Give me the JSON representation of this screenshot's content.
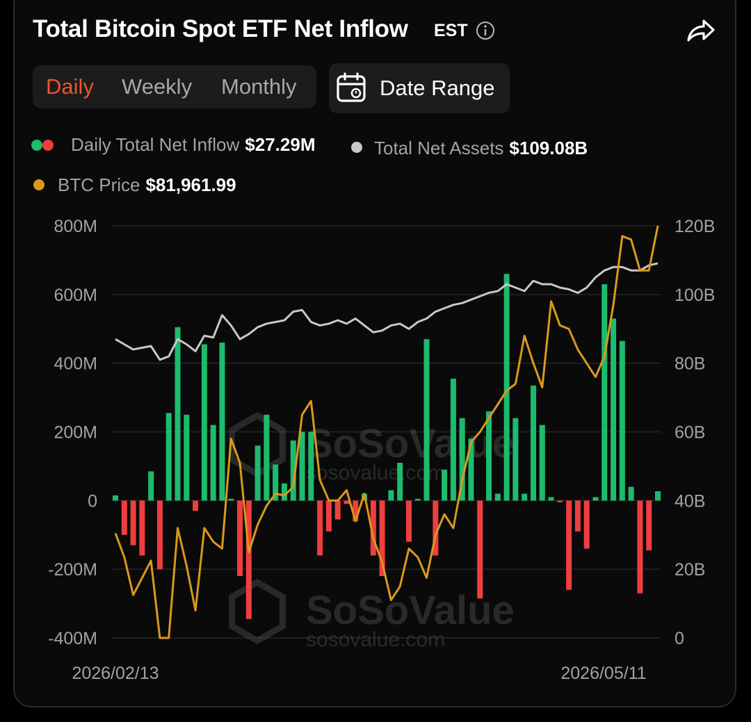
{
  "header": {
    "title": "Total Bitcoin Spot ETF Net Inflow",
    "timezone": "EST"
  },
  "tabs": [
    "Daily",
    "Weekly",
    "Monthly"
  ],
  "active_tab": "Daily",
  "date_range_label": "Date Range",
  "legend": {
    "inflow": {
      "label": "Daily Total Net Inflow",
      "value": "$27.29M"
    },
    "assets": {
      "label": "Total Net Assets",
      "value": "$109.08B"
    },
    "price": {
      "label": "BTC Price",
      "value": "$81,961.99"
    }
  },
  "watermark": {
    "brand": "SoSoValue",
    "url": "sosovalue.com"
  },
  "colors": {
    "positive": "#1dbb6e",
    "negative": "#ee3e3e",
    "assets_line": "#c8c8c8",
    "price_line": "#d99a1a",
    "active_tab": "#ec5530"
  },
  "chart_data": {
    "type": "bar",
    "x_start_label": "2026/02/13",
    "x_end_label": "2026/05/11",
    "y_left_ticks": [
      "800M",
      "600M",
      "400M",
      "200M",
      "0",
      "-200M",
      "-400M"
    ],
    "y_right_ticks": [
      "120B",
      "100B",
      "80B",
      "60B",
      "40B",
      "20B",
      "0"
    ],
    "ylim_left": [
      -400,
      800
    ],
    "ylim_right": [
      0,
      120
    ],
    "grid": true,
    "series": [
      {
        "name": "Daily Total Net Inflow",
        "unit": "M USD",
        "axis": "left",
        "values": [
          15,
          -100,
          -130,
          -160,
          85,
          -200,
          255,
          505,
          250,
          -30,
          455,
          220,
          460,
          5,
          -220,
          -345,
          160,
          250,
          105,
          50,
          175,
          200,
          200,
          -160,
          -90,
          -55,
          -10,
          -60,
          20,
          -160,
          -220,
          30,
          110,
          -120,
          5,
          470,
          -160,
          90,
          355,
          240,
          180,
          -285,
          260,
          20,
          660,
          240,
          20,
          335,
          220,
          10,
          -5,
          -260,
          -90,
          -140,
          10,
          630,
          530,
          465,
          40,
          -270,
          -145,
          27
        ]
      },
      {
        "name": "Total Net Assets",
        "unit": "B USD",
        "axis": "right",
        "values": [
          87,
          85.5,
          84,
          84.5,
          85,
          81,
          82,
          87,
          85.5,
          83.5,
          88,
          87.5,
          94,
          91,
          87,
          88.5,
          90.5,
          91.5,
          92,
          92.5,
          95,
          95.5,
          92,
          91,
          91.5,
          92.5,
          91.5,
          93,
          91,
          89,
          89.5,
          91,
          91.5,
          90,
          92,
          93,
          95,
          96,
          97,
          97.5,
          98.5,
          99.5,
          100.5,
          101,
          103,
          102,
          101,
          104,
          103,
          103,
          102,
          101.5,
          100.5,
          102,
          105,
          107,
          108,
          108,
          107,
          107,
          108.5,
          109.08
        ]
      },
      {
        "name": "BTC Price",
        "axis": "right",
        "values": [
          30.5,
          23.5,
          12.5,
          17.5,
          22.5,
          0,
          0,
          32,
          21,
          8,
          32,
          28,
          26,
          58,
          51,
          25,
          33,
          38.5,
          42,
          41.5,
          44,
          65,
          69,
          46,
          40,
          40,
          43,
          34,
          42,
          29,
          22,
          11,
          15,
          26,
          23.5,
          17.5,
          30,
          36,
          32,
          46,
          57,
          60,
          64,
          68,
          72,
          74,
          88,
          80,
          73,
          98,
          91,
          90,
          84,
          80,
          76,
          82,
          97,
          117,
          116,
          107,
          107,
          120
        ]
      }
    ]
  }
}
